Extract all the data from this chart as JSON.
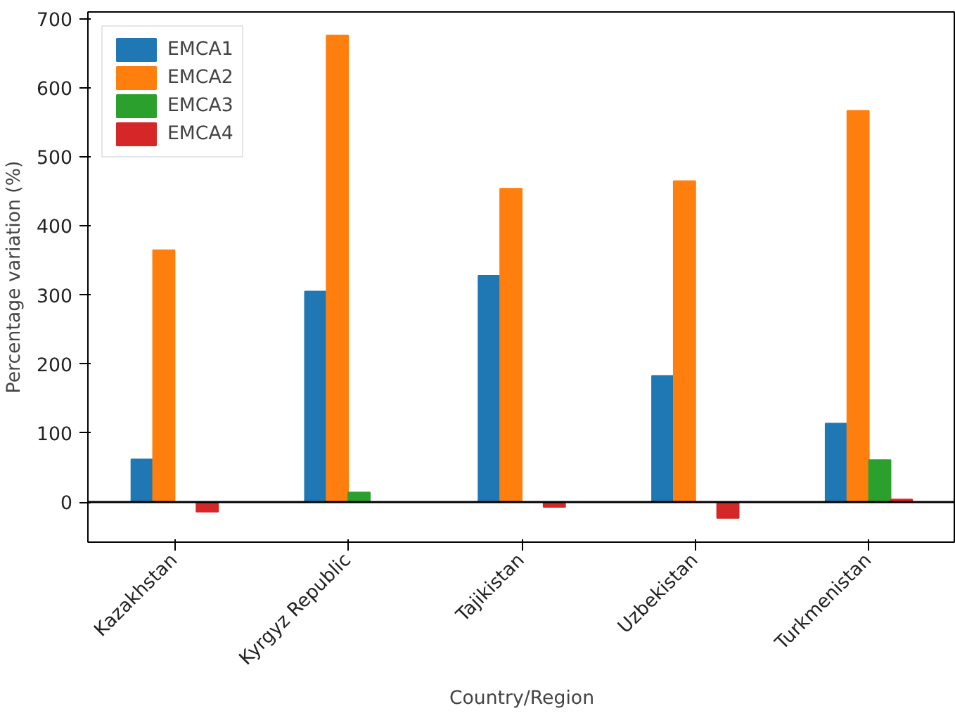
{
  "chart_data": {
    "type": "bar",
    "xlabel": "Country/Region",
    "ylabel": "Percentage variation (%)",
    "categories": [
      "Kazakhstan",
      "Kyrgyz Republic",
      "Tajikistan",
      "Uzbekistan",
      "Turkmenistan"
    ],
    "series": [
      {
        "name": "EMCA1",
        "color": "#1f77b4",
        "values": [
          62,
          305,
          328,
          183,
          114
        ]
      },
      {
        "name": "EMCA2",
        "color": "#ff7f0e",
        "values": [
          365,
          676,
          454,
          465,
          567
        ]
      },
      {
        "name": "EMCA3",
        "color": "#2ca02c",
        "values": [
          0,
          14,
          0,
          0,
          61
        ]
      },
      {
        "name": "EMCA4",
        "color": "#d62728",
        "values": [
          -14,
          0,
          -7,
          -23,
          4
        ]
      }
    ],
    "ylim": [
      -58,
      710
    ],
    "yticks": [
      0,
      100,
      200,
      300,
      400,
      500,
      600,
      700
    ],
    "ref_lines": [
      {
        "axis": "y",
        "value": 0,
        "color": "#000000"
      }
    ],
    "grid": false,
    "legend": "top left"
  }
}
